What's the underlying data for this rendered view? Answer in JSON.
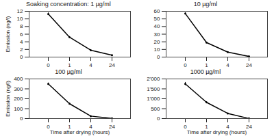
{
  "chart_data": [
    {
      "type": "line",
      "title": "Soaking concentration: 1 µg/ml",
      "y_label": "Emission (ng/l)",
      "categories": [
        "0",
        "1",
        "4",
        "24"
      ],
      "values": [
        11.3,
        5.2,
        1.8,
        0.5
      ],
      "errors": [
        0.3,
        0.2,
        0.1,
        0.1
      ],
      "color": "#000000",
      "ylim": [
        0,
        12
      ],
      "yticks": [
        0,
        2,
        4,
        6,
        8,
        10,
        12
      ]
    },
    {
      "type": "line",
      "title": "10 µg/ml",
      "categories": [
        "0",
        "1",
        "4",
        "24"
      ],
      "values": [
        57,
        19,
        6.5,
        0.8
      ],
      "errors": [
        1.2,
        0.6,
        0.3,
        0.1
      ],
      "color": "#000000",
      "ylim": [
        0,
        60
      ],
      "yticks": [
        0,
        10,
        20,
        30,
        40,
        50,
        60
      ]
    },
    {
      "type": "line",
      "title": "100 µg/ml",
      "y_label": "Emission (ng/l)",
      "x_label": "Time after drying (hours)",
      "categories": [
        "0",
        "1",
        "4",
        "24"
      ],
      "values": [
        350,
        150,
        25,
        2
      ],
      "errors": [
        10,
        5,
        2,
        0.5
      ],
      "color": "#000000",
      "ylim": [
        0,
        400
      ],
      "yticks": [
        0,
        100,
        200,
        300,
        400
      ]
    },
    {
      "type": "line",
      "title": "1000 µg/ml",
      "x_label": "Time after drying (hours)",
      "categories": [
        "0",
        "1",
        "4",
        "24"
      ],
      "values": [
        1750,
        820,
        260,
        5
      ],
      "errors": [
        80,
        30,
        15,
        2
      ],
      "color": "#000000",
      "ylim": [
        0,
        2000
      ],
      "yticks": [
        0,
        500,
        {
          "value": 1000,
          "label": "1'000"
        },
        {
          "value": 1500,
          "label": "1'500"
        },
        {
          "value": 2000,
          "label": "2'000"
        }
      ]
    }
  ]
}
